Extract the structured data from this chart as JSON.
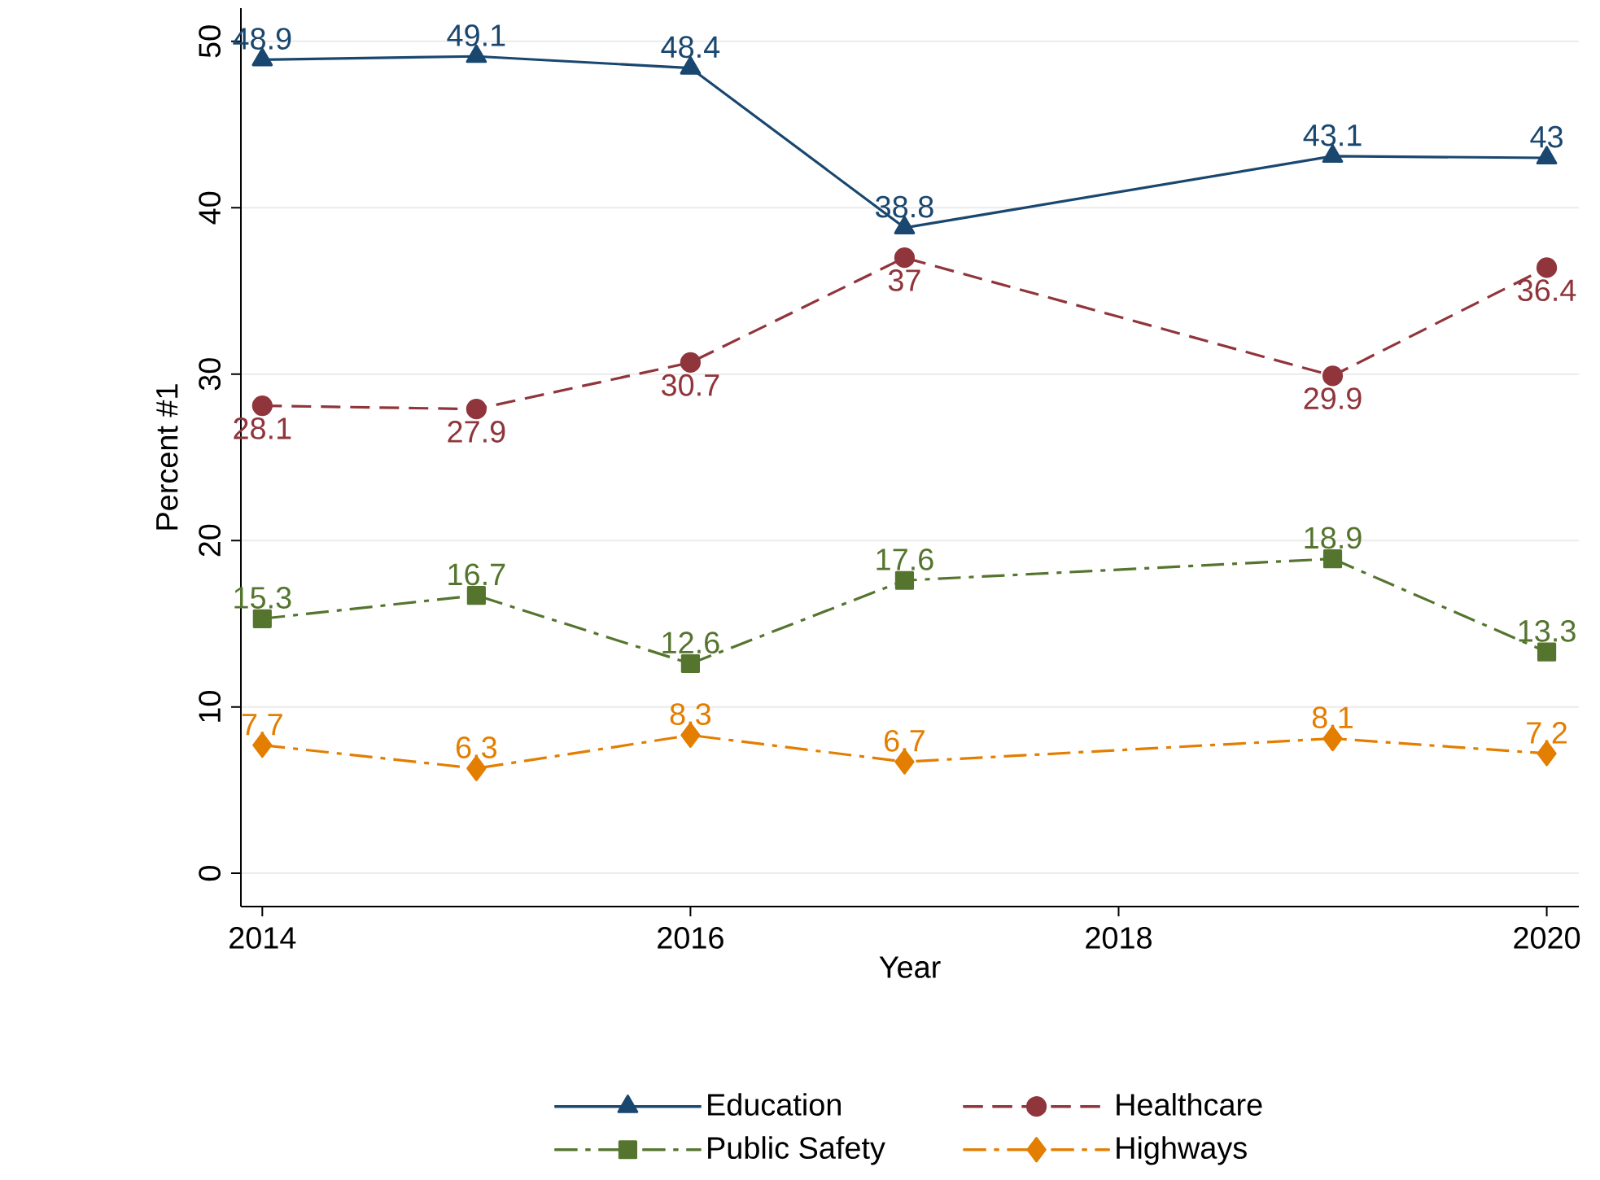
{
  "chart_data": {
    "type": "line",
    "xlabel": "Year",
    "ylabel": "Percent #1",
    "x": [
      2014,
      2015,
      2016,
      2017,
      2019,
      2020
    ],
    "series": [
      {
        "name": "Education",
        "color": "#1a476f",
        "marker": "triangle",
        "line_style": "solid",
        "values": [
          48.9,
          49.1,
          48.4,
          38.8,
          43.1,
          43
        ]
      },
      {
        "name": "Healthcare",
        "color": "#90353b",
        "marker": "circle",
        "line_style": "dashed",
        "values": [
          28.1,
          27.9,
          30.7,
          37,
          29.9,
          36.4
        ]
      },
      {
        "name": "Public Safety",
        "color": "#55752f",
        "marker": "square",
        "line_style": "dashdot",
        "values": [
          15.3,
          16.7,
          12.6,
          17.6,
          18.9,
          13.3
        ]
      },
      {
        "name": "Highways",
        "color": "#e37e00",
        "marker": "diamond",
        "line_style": "dashdot",
        "values": [
          7.7,
          6.3,
          8.3,
          6.7,
          8.1,
          7.2
        ]
      }
    ],
    "xlim": [
      2013.9,
      2020.15
    ],
    "ylim": [
      -2,
      52
    ],
    "xticks": [
      2014,
      2016,
      2018,
      2020
    ],
    "yticks": [
      0,
      10,
      20,
      30,
      40,
      50
    ],
    "grid": "y",
    "legend": "bottom",
    "data_labels": true
  }
}
